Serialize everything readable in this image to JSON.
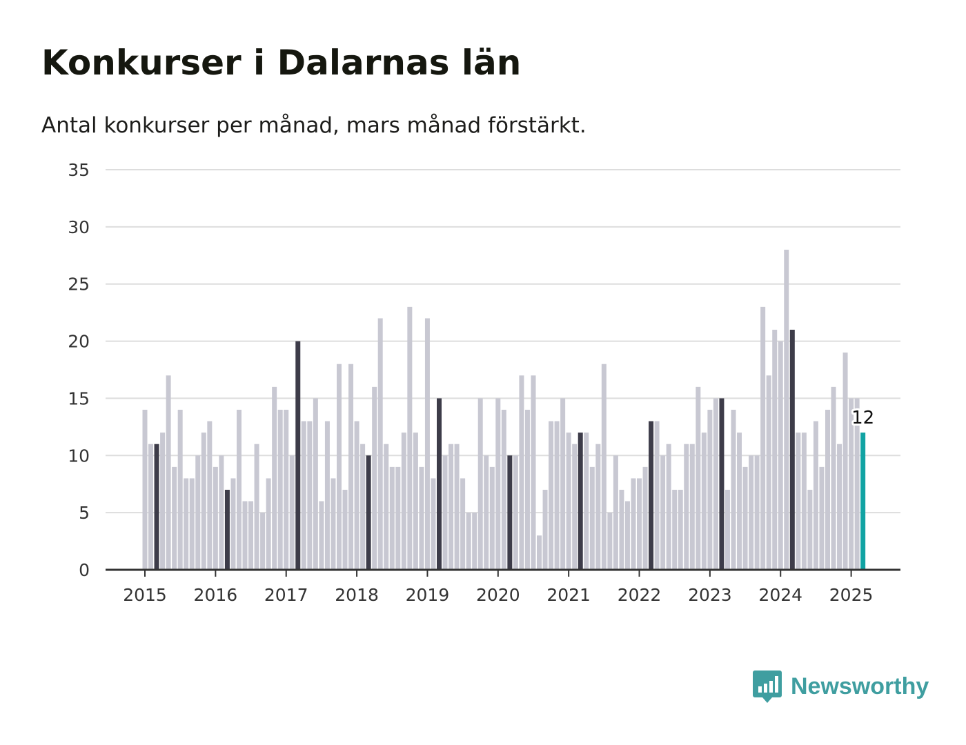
{
  "title": "Konkurser i Dalarnas län",
  "subtitle": "Antal konkurser per månad, mars månad förstärkt.",
  "brand": {
    "name": "Newsworthy",
    "icon": "newsworthy-logo-icon",
    "color": "#3f9ea0"
  },
  "colors": {
    "bar": "#c8c8d2",
    "highlight_bar": "#3d3c49",
    "latest_bar": "#11a3a3",
    "grid": "#dddddd",
    "axis": "#333333"
  },
  "chart_data": {
    "type": "bar",
    "title": "Konkurser i Dalarnas län",
    "subtitle": "Antal konkurser per månad, mars månad förstärkt.",
    "xlabel": "",
    "ylabel": "",
    "ylim": [
      0,
      35
    ],
    "y_ticks": [
      0,
      5,
      10,
      15,
      20,
      25,
      30,
      35
    ],
    "x_tick_labels": [
      "2015",
      "2016",
      "2017",
      "2018",
      "2019",
      "2020",
      "2021",
      "2022",
      "2023",
      "2024",
      "2025"
    ],
    "grid": true,
    "start": "2015-01",
    "interval": "month",
    "highlight_month": "mars",
    "values": [
      14,
      11,
      11,
      12,
      17,
      9,
      14,
      8,
      8,
      10,
      12,
      13,
      9,
      10,
      7,
      8,
      14,
      6,
      6,
      11,
      5,
      8,
      16,
      14,
      14,
      10,
      20,
      13,
      13,
      15,
      6,
      13,
      8,
      18,
      7,
      18,
      13,
      11,
      10,
      16,
      22,
      11,
      9,
      9,
      12,
      23,
      12,
      9,
      22,
      8,
      15,
      10,
      11,
      11,
      8,
      5,
      5,
      15,
      10,
      9,
      15,
      14,
      10,
      10,
      17,
      14,
      17,
      3,
      7,
      13,
      13,
      15,
      12,
      11,
      12,
      12,
      9,
      11,
      18,
      5,
      10,
      7,
      6,
      8,
      8,
      9,
      13,
      13,
      10,
      11,
      7,
      7,
      11,
      11,
      16,
      12,
      14,
      15,
      15,
      7,
      14,
      12,
      9,
      10,
      10,
      23,
      17,
      21,
      20,
      28,
      21,
      12,
      12,
      7,
      13,
      9,
      14,
      16,
      11,
      19,
      15,
      15,
      12
    ],
    "data_labels": [
      {
        "index": 122,
        "text": "12"
      }
    ]
  }
}
